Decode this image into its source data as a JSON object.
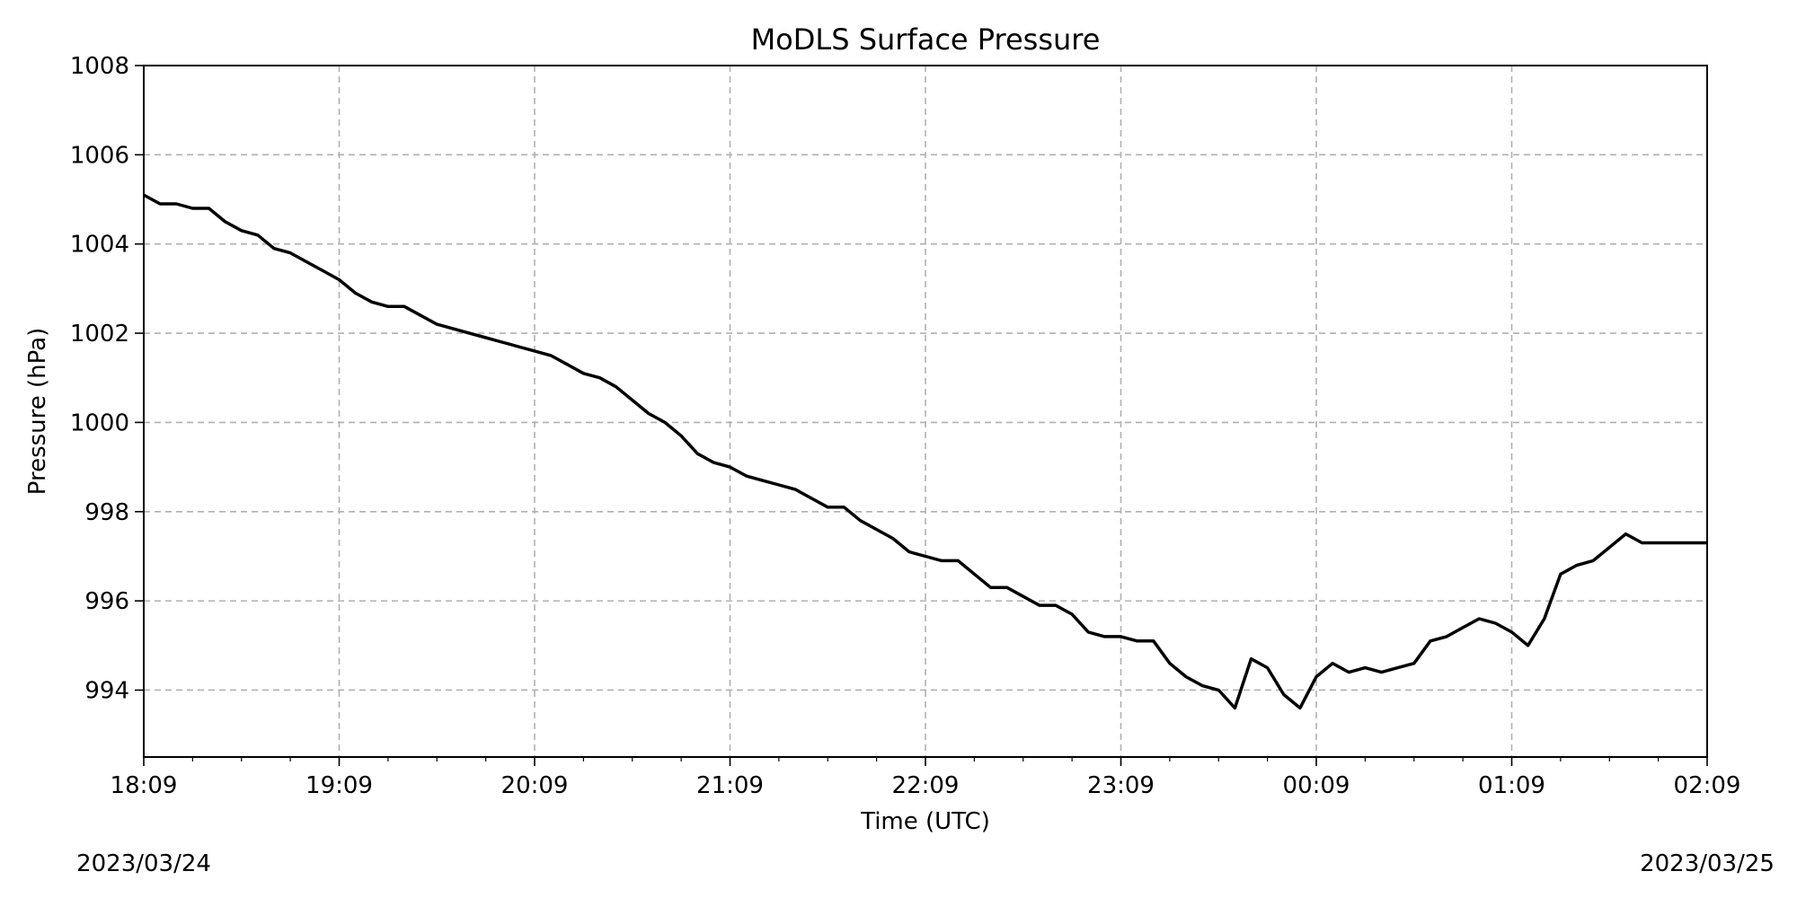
{
  "chart_data": {
    "type": "line",
    "title": "MoDLS Surface Pressure",
    "xlabel": "Time (UTC)",
    "ylabel": "Pressure (hPa)",
    "start_date": "2023/03/24",
    "end_date": "2023/03/25",
    "x_tick_labels": [
      "18:09",
      "19:09",
      "20:09",
      "21:09",
      "22:09",
      "23:09",
      "00:09",
      "01:09",
      "02:09"
    ],
    "y_tick_labels": [
      "994",
      "996",
      "998",
      "1000",
      "1002",
      "1004",
      "1006",
      "1008"
    ],
    "xlim": [
      "2023-03-24 18:09",
      "2023-03-25 02:09"
    ],
    "ylim": [
      992.5,
      1008
    ],
    "grid": true,
    "line_color": "#000000",
    "series": [
      {
        "x": [
          "18:09",
          "18:14",
          "18:19",
          "18:24",
          "18:29",
          "18:34",
          "18:39",
          "18:44",
          "18:49",
          "18:54",
          "18:59",
          "19:04",
          "19:09",
          "19:14",
          "19:19",
          "19:24",
          "19:29",
          "19:34",
          "19:39",
          "19:44",
          "19:49",
          "19:54",
          "19:59",
          "20:04",
          "20:09",
          "20:14",
          "20:19",
          "20:24",
          "20:29",
          "20:34",
          "20:39",
          "20:44",
          "20:49",
          "20:54",
          "20:59",
          "21:04",
          "21:09",
          "21:14",
          "21:19",
          "21:24",
          "21:29",
          "21:34",
          "21:39",
          "21:44",
          "21:49",
          "21:54",
          "21:59",
          "22:04",
          "22:09",
          "22:14",
          "22:19",
          "22:24",
          "22:29",
          "22:34",
          "22:39",
          "22:44",
          "22:49",
          "22:54",
          "22:59",
          "23:04",
          "23:09",
          "23:14",
          "23:19",
          "23:24",
          "23:29",
          "23:34",
          "23:39",
          "23:44",
          "23:49",
          "23:54",
          "23:59",
          "00:04",
          "00:09",
          "00:14",
          "00:19",
          "00:24",
          "00:29",
          "00:34",
          "00:39",
          "00:44",
          "00:49",
          "00:54",
          "00:59",
          "01:04",
          "01:09",
          "01:14",
          "01:19",
          "01:24",
          "01:29",
          "01:34",
          "01:39",
          "01:44",
          "01:49",
          "01:54",
          "01:59",
          "02:04",
          "02:09"
        ],
        "values": [
          1005.1,
          1004.9,
          1004.9,
          1004.8,
          1004.8,
          1004.5,
          1004.3,
          1004.2,
          1003.9,
          1003.8,
          1003.6,
          1003.4,
          1003.2,
          1002.9,
          1002.7,
          1002.6,
          1002.6,
          1002.4,
          1002.2,
          1002.1,
          1002.0,
          1001.9,
          1001.8,
          1001.7,
          1001.6,
          1001.5,
          1001.3,
          1001.1,
          1001.0,
          1000.8,
          1000.5,
          1000.2,
          1000.0,
          999.7,
          999.3,
          999.1,
          999.0,
          998.8,
          998.7,
          998.6,
          998.5,
          998.3,
          998.1,
          998.1,
          997.8,
          997.6,
          997.4,
          997.1,
          997.0,
          996.9,
          996.9,
          996.6,
          996.3,
          996.3,
          996.1,
          995.9,
          995.9,
          995.7,
          995.3,
          995.2,
          995.2,
          995.1,
          995.1,
          994.6,
          994.3,
          994.1,
          994.0,
          993.6,
          994.7,
          994.5,
          993.9,
          993.6,
          994.3,
          994.6,
          994.4,
          994.5,
          994.4,
          994.5,
          994.6,
          995.1,
          995.2,
          995.4,
          995.6,
          995.5,
          995.3,
          995.0,
          995.6,
          996.6,
          996.8,
          996.9,
          997.2,
          997.5,
          997.3,
          997.3,
          997.3,
          997.3,
          997.3
        ]
      }
    ]
  }
}
